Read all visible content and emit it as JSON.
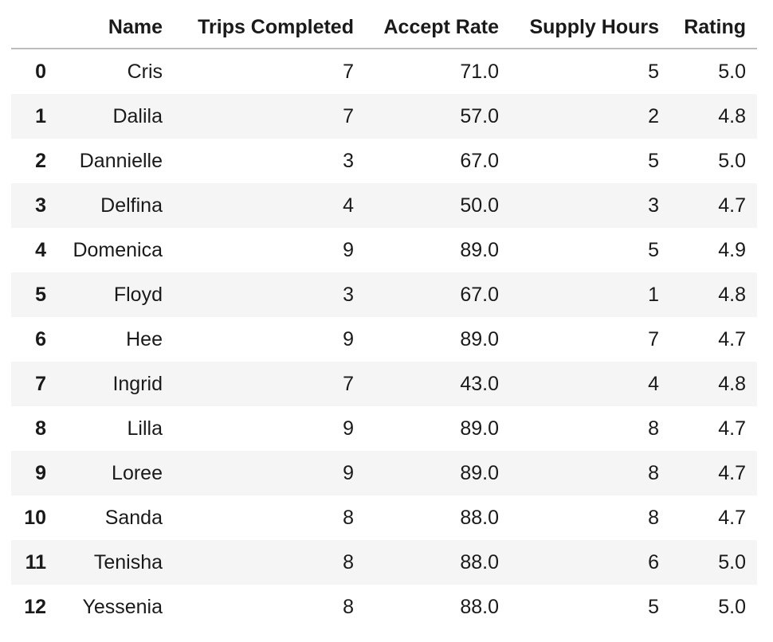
{
  "table": {
    "columns": [
      "",
      "Name",
      "Trips Completed",
      "Accept Rate",
      "Supply Hours",
      "Rating"
    ],
    "rows": [
      {
        "index": "0",
        "name": "Cris",
        "trips": "7",
        "accept": "71.0",
        "supply": "5",
        "rating": "5.0"
      },
      {
        "index": "1",
        "name": "Dalila",
        "trips": "7",
        "accept": "57.0",
        "supply": "2",
        "rating": "4.8"
      },
      {
        "index": "2",
        "name": "Dannielle",
        "trips": "3",
        "accept": "67.0",
        "supply": "5",
        "rating": "5.0"
      },
      {
        "index": "3",
        "name": "Delfina",
        "trips": "4",
        "accept": "50.0",
        "supply": "3",
        "rating": "4.7"
      },
      {
        "index": "4",
        "name": "Domenica",
        "trips": "9",
        "accept": "89.0",
        "supply": "5",
        "rating": "4.9"
      },
      {
        "index": "5",
        "name": "Floyd",
        "trips": "3",
        "accept": "67.0",
        "supply": "1",
        "rating": "4.8"
      },
      {
        "index": "6",
        "name": "Hee",
        "trips": "9",
        "accept": "89.0",
        "supply": "7",
        "rating": "4.7"
      },
      {
        "index": "7",
        "name": "Ingrid",
        "trips": "7",
        "accept": "43.0",
        "supply": "4",
        "rating": "4.8"
      },
      {
        "index": "8",
        "name": "Lilla",
        "trips": "9",
        "accept": "89.0",
        "supply": "8",
        "rating": "4.7"
      },
      {
        "index": "9",
        "name": "Loree",
        "trips": "9",
        "accept": "89.0",
        "supply": "8",
        "rating": "4.7"
      },
      {
        "index": "10",
        "name": "Sanda",
        "trips": "8",
        "accept": "88.0",
        "supply": "8",
        "rating": "4.7"
      },
      {
        "index": "11",
        "name": "Tenisha",
        "trips": "8",
        "accept": "88.0",
        "supply": "6",
        "rating": "5.0"
      },
      {
        "index": "12",
        "name": "Yessenia",
        "trips": "8",
        "accept": "88.0",
        "supply": "5",
        "rating": "5.0"
      }
    ]
  }
}
